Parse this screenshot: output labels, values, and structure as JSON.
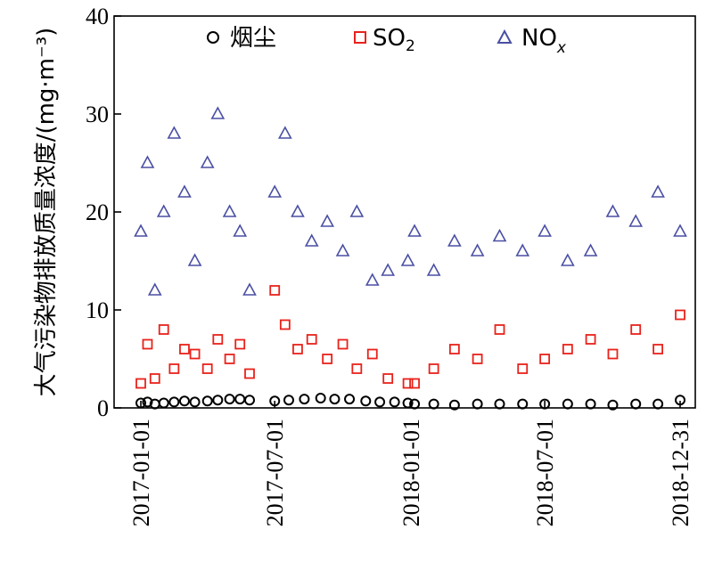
{
  "chart_data": {
    "type": "scatter",
    "ylabel": "大气污染物排放质量浓度/(mg·m⁻³)",
    "ylim": [
      0,
      40
    ],
    "yticks": [
      0,
      10,
      20,
      30,
      40
    ],
    "xlim": [
      "2017-01-01",
      "2018-12-31"
    ],
    "xticks": [
      "2017-01-01",
      "2017-07-01",
      "2018-01-01",
      "2018-07-01",
      "2018-12-31"
    ],
    "data_gaps": [
      [
        "2017-06-01",
        "2017-06-29"
      ],
      [
        "2017-12-31",
        "2018-01-05"
      ]
    ],
    "grid": false,
    "legend_position": "top",
    "legend": [
      {
        "label": "烟尘",
        "marker": "circle",
        "color": "#000000"
      },
      {
        "label": "SO",
        "sub": "2",
        "marker": "square",
        "color": "#e8221b"
      },
      {
        "label": "NO",
        "sub": "x",
        "marker": "triangle",
        "color": "#4a4fa3"
      }
    ],
    "series": [
      {
        "name": "烟尘",
        "marker": "circle",
        "color": "#000000",
        "points": [
          [
            "2017-01-01",
            0.5
          ],
          [
            "2017-01-10",
            0.6
          ],
          [
            "2017-01-20",
            0.4
          ],
          [
            "2017-02-01",
            0.5
          ],
          [
            "2017-02-15",
            0.6
          ],
          [
            "2017-03-01",
            0.7
          ],
          [
            "2017-03-15",
            0.6
          ],
          [
            "2017-04-01",
            0.7
          ],
          [
            "2017-04-15",
            0.8
          ],
          [
            "2017-05-01",
            0.9
          ],
          [
            "2017-05-15",
            0.9
          ],
          [
            "2017-05-28",
            0.8
          ],
          [
            "2017-07-01",
            0.7
          ],
          [
            "2017-07-20",
            0.8
          ],
          [
            "2017-08-10",
            0.9
          ],
          [
            "2017-09-01",
            1.0
          ],
          [
            "2017-09-20",
            0.9
          ],
          [
            "2017-10-10",
            0.9
          ],
          [
            "2017-11-01",
            0.7
          ],
          [
            "2017-11-20",
            0.6
          ],
          [
            "2017-12-10",
            0.6
          ],
          [
            "2017-12-28",
            0.5
          ],
          [
            "2018-01-06",
            0.4
          ],
          [
            "2018-02-01",
            0.4
          ],
          [
            "2018-03-01",
            0.3
          ],
          [
            "2018-04-01",
            0.4
          ],
          [
            "2018-05-01",
            0.4
          ],
          [
            "2018-06-01",
            0.4
          ],
          [
            "2018-07-01",
            0.4
          ],
          [
            "2018-08-01",
            0.4
          ],
          [
            "2018-09-01",
            0.4
          ],
          [
            "2018-10-01",
            0.3
          ],
          [
            "2018-11-01",
            0.4
          ],
          [
            "2018-12-01",
            0.4
          ],
          [
            "2018-12-31",
            0.8
          ]
        ]
      },
      {
        "name": "SO2",
        "marker": "square",
        "color": "#e8221b",
        "points": [
          [
            "2017-01-01",
            2.5
          ],
          [
            "2017-01-10",
            6.5
          ],
          [
            "2017-01-20",
            3.0
          ],
          [
            "2017-02-01",
            8.0
          ],
          [
            "2017-02-15",
            4.0
          ],
          [
            "2017-03-01",
            6.0
          ],
          [
            "2017-03-15",
            5.5
          ],
          [
            "2017-04-01",
            4.0
          ],
          [
            "2017-04-15",
            7.0
          ],
          [
            "2017-05-01",
            5.0
          ],
          [
            "2017-05-15",
            6.5
          ],
          [
            "2017-05-28",
            3.5
          ],
          [
            "2017-07-01",
            12.0
          ],
          [
            "2017-07-15",
            8.5
          ],
          [
            "2017-08-01",
            6.0
          ],
          [
            "2017-08-20",
            7.0
          ],
          [
            "2017-09-10",
            5.0
          ],
          [
            "2017-10-01",
            6.5
          ],
          [
            "2017-10-20",
            4.0
          ],
          [
            "2017-11-10",
            5.5
          ],
          [
            "2017-12-01",
            3.0
          ],
          [
            "2017-12-28",
            2.5
          ],
          [
            "2018-01-06",
            2.5
          ],
          [
            "2018-02-01",
            4.0
          ],
          [
            "2018-03-01",
            6.0
          ],
          [
            "2018-04-01",
            5.0
          ],
          [
            "2018-05-01",
            8.0
          ],
          [
            "2018-06-01",
            4.0
          ],
          [
            "2018-07-01",
            5.0
          ],
          [
            "2018-08-01",
            6.0
          ],
          [
            "2018-09-01",
            7.0
          ],
          [
            "2018-10-01",
            5.5
          ],
          [
            "2018-11-01",
            8.0
          ],
          [
            "2018-12-01",
            6.0
          ],
          [
            "2018-12-31",
            9.5
          ]
        ]
      },
      {
        "name": "NOx",
        "marker": "triangle",
        "color": "#4a4fa3",
        "points": [
          [
            "2017-01-01",
            18.0
          ],
          [
            "2017-01-10",
            25.0
          ],
          [
            "2017-01-20",
            12.0
          ],
          [
            "2017-02-01",
            20.0
          ],
          [
            "2017-02-15",
            28.0
          ],
          [
            "2017-03-01",
            22.0
          ],
          [
            "2017-03-15",
            15.0
          ],
          [
            "2017-04-01",
            25.0
          ],
          [
            "2017-04-15",
            30.0
          ],
          [
            "2017-05-01",
            20.0
          ],
          [
            "2017-05-15",
            18.0
          ],
          [
            "2017-05-28",
            12.0
          ],
          [
            "2017-07-01",
            22.0
          ],
          [
            "2017-07-15",
            28.0
          ],
          [
            "2017-08-01",
            20.0
          ],
          [
            "2017-08-20",
            17.0
          ],
          [
            "2017-09-10",
            19.0
          ],
          [
            "2017-10-01",
            16.0
          ],
          [
            "2017-10-20",
            20.0
          ],
          [
            "2017-11-10",
            13.0
          ],
          [
            "2017-12-01",
            14.0
          ],
          [
            "2017-12-28",
            15.0
          ],
          [
            "2018-01-06",
            18.0
          ],
          [
            "2018-02-01",
            14.0
          ],
          [
            "2018-03-01",
            17.0
          ],
          [
            "2018-04-01",
            16.0
          ],
          [
            "2018-05-01",
            17.5
          ],
          [
            "2018-06-01",
            16.0
          ],
          [
            "2018-07-01",
            18.0
          ],
          [
            "2018-08-01",
            15.0
          ],
          [
            "2018-09-01",
            16.0
          ],
          [
            "2018-10-01",
            20.0
          ],
          [
            "2018-11-01",
            19.0
          ],
          [
            "2018-12-01",
            22.0
          ],
          [
            "2018-12-31",
            18.0
          ]
        ]
      }
    ]
  }
}
